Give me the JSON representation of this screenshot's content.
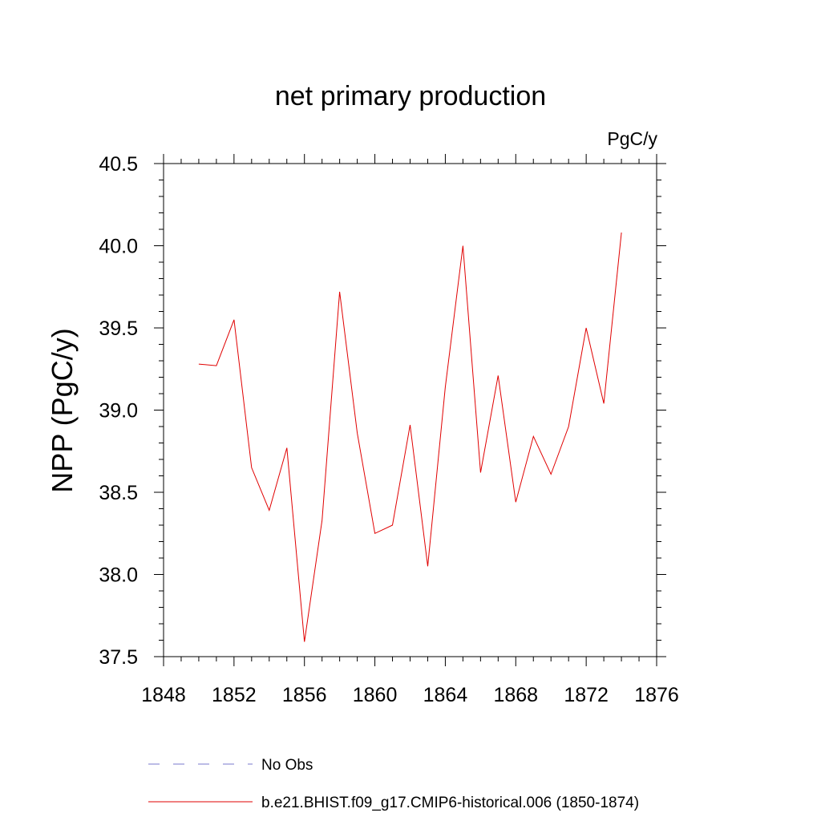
{
  "chart_data": {
    "type": "line",
    "title": "net primary production",
    "units_label": "PgC/y",
    "ylabel": "NPP  (PgC/y)",
    "xlabel": "",
    "xlim": [
      1848,
      1876
    ],
    "ylim": [
      37.5,
      40.5
    ],
    "x_ticks": [
      1848,
      1852,
      1856,
      1860,
      1864,
      1868,
      1872,
      1876
    ],
    "x_tick_labels": [
      "1848",
      "1852",
      "1856",
      "1860",
      "1864",
      "1868",
      "1872",
      "1876"
    ],
    "y_ticks": [
      37.5,
      38.0,
      38.5,
      39.0,
      39.5,
      40.0,
      40.5
    ],
    "y_tick_labels": [
      "37.5",
      "38.0",
      "38.5",
      "39.0",
      "39.5",
      "40.0",
      "40.5"
    ],
    "grid": false,
    "legend_position": "bottom",
    "legend": [
      {
        "label": "No Obs",
        "color": "#7a7acc",
        "style": "dashed"
      },
      {
        "label": "b.e21.BHIST.f09_g17.CMIP6-historical.006 (1850-1874)",
        "color": "#e00000",
        "style": "solid"
      }
    ],
    "series": [
      {
        "name": "b.e21.BHIST.f09_g17.CMIP6-historical.006 (1850-1874)",
        "color": "#e00000",
        "x": [
          1850,
          1851,
          1852,
          1853,
          1854,
          1855,
          1856,
          1857,
          1858,
          1859,
          1860,
          1861,
          1862,
          1863,
          1864,
          1865,
          1866,
          1867,
          1868,
          1869,
          1870,
          1871,
          1872,
          1873,
          1874
        ],
        "y": [
          39.28,
          39.27,
          39.55,
          38.65,
          38.39,
          38.77,
          37.59,
          38.33,
          39.72,
          38.86,
          38.25,
          38.3,
          38.91,
          38.05,
          39.14,
          40.0,
          38.62,
          39.21,
          38.44,
          38.84,
          38.61,
          38.9,
          39.5,
          39.04,
          40.08
        ]
      }
    ]
  }
}
